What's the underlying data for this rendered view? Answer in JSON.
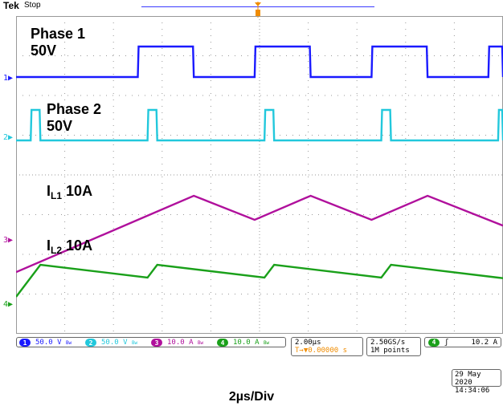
{
  "header": {
    "brand": "Tek",
    "state": "Stop"
  },
  "labels": {
    "phase1_name": "Phase 1",
    "phase1_scale": "50V",
    "phase2_name": "Phase 2",
    "phase2_scale": "50V",
    "il1_main": "I",
    "il1_sub": "L1",
    "il1_scale": "10A",
    "il2_main": "I",
    "il2_sub": "L2",
    "il2_scale": "10A"
  },
  "channels": [
    {
      "num": "1",
      "scale": "50.0 V",
      "coupling": "Bw",
      "color": "#1a1aff"
    },
    {
      "num": "2",
      "scale": "50.0 V",
      "coupling": "Bw",
      "color": "#22c8dc"
    },
    {
      "num": "3",
      "scale": "10.0 A",
      "coupling": "Bw",
      "color": "#b0109c"
    },
    {
      "num": "4",
      "scale": "10.0 A",
      "coupling": "Bw",
      "color": "#1aa01a"
    }
  ],
  "timebase": {
    "scale": "2.00µs",
    "position": "T→▼0.00000 s"
  },
  "acquisition": {
    "rate": "2.50GS/s",
    "record": "1M points"
  },
  "trigger": {
    "source": "4",
    "slope": "ʃ",
    "level": "10.2 A"
  },
  "datetime": {
    "date": "29 May 2020",
    "time": "14:34:06"
  },
  "footer": {
    "caption": "2µs/Div"
  },
  "chart_data": {
    "type": "line",
    "x_unit": "µs",
    "xlim": [
      -10,
      10
    ],
    "series": [
      {
        "name": "Phase 1",
        "color": "#1a1aff",
        "kind": "pulse",
        "high": 50,
        "low": 0,
        "edges": [
          [
            -5.0,
            -2.7
          ],
          [
            -0.2,
            2.1
          ],
          [
            4.6,
            6.9
          ],
          [
            9.4,
            11.7
          ]
        ]
      },
      {
        "name": "Phase 2",
        "color": "#22c8dc",
        "kind": "pulse",
        "high": 50,
        "low": 0,
        "edges": [
          [
            -9.4,
            -9.0
          ],
          [
            -4.6,
            -4.2
          ],
          [
            0.2,
            0.6
          ],
          [
            5.0,
            5.4
          ],
          [
            9.8,
            10.2
          ]
        ]
      },
      {
        "name": "IL1",
        "color": "#b0109c",
        "kind": "triangle",
        "peak": 18,
        "valley": 10,
        "valleys": [
          -5.0,
          -0.2,
          4.6,
          9.4
        ],
        "peaks": [
          -2.7,
          2.1,
          6.9
        ]
      },
      {
        "name": "IL2",
        "color": "#1aa01a",
        "kind": "triangle",
        "peak": 18,
        "valley": 10,
        "valleys": [
          -9.4,
          -4.6,
          0.2,
          5.0,
          9.8
        ],
        "peaks": [
          -9.0,
          -4.2,
          0.6,
          5.4
        ]
      }
    ]
  }
}
